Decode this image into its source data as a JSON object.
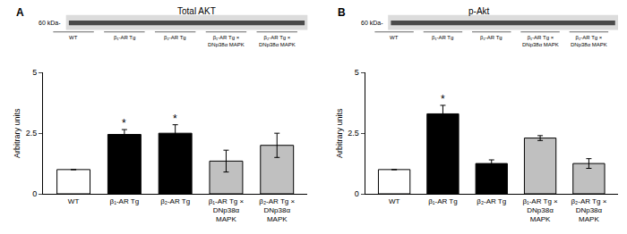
{
  "chart_data": [
    {
      "type": "bar",
      "panel": "A",
      "title": "Total AKT",
      "blot_label": "60 kDa-",
      "categories": [
        "WT",
        "β₁-AR Tg",
        "β₂-AR Tg",
        "β₁-AR Tg × DNp38α MAPK",
        "β₂-AR Tg × DNp38α MAPK"
      ],
      "values": [
        1,
        2.45,
        2.5,
        1.35,
        2.0
      ],
      "errors": [
        0,
        0.2,
        0.35,
        0.45,
        0.5
      ],
      "colors": [
        "#ffffff",
        "#000000",
        "#000000",
        "#c0c0c0",
        "#c0c0c0"
      ],
      "y_label": "Arbitrary units",
      "ylim": [
        0,
        5
      ],
      "yticks": [
        0,
        2.5,
        5
      ],
      "grid": false,
      "annotations": [
        {
          "category": "β₁-AR Tg",
          "text": "*"
        },
        {
          "category": "β₂-AR Tg",
          "text": "*"
        }
      ]
    },
    {
      "type": "bar",
      "panel": "B",
      "title": "p-Akt",
      "blot_label": "60 kDa-",
      "categories": [
        "WT",
        "β₁-AR Tg",
        "β₂-AR Tg",
        "β₁-AR Tg × DNp38α MAPK",
        "β₂-AR Tg × DNp38α MAPK"
      ],
      "values": [
        1,
        3.3,
        1.25,
        2.3,
        1.25
      ],
      "errors": [
        0,
        0.35,
        0.15,
        0.1,
        0.2
      ],
      "colors": [
        "#ffffff",
        "#000000",
        "#000000",
        "#c0c0c0",
        "#c0c0c0"
      ],
      "y_label": "Arbitrary units",
      "ylim": [
        0,
        5
      ],
      "yticks": [
        0,
        2.5,
        5
      ],
      "grid": false,
      "annotations": [
        {
          "category": "β₁-AR Tg",
          "text": "*"
        }
      ]
    }
  ]
}
